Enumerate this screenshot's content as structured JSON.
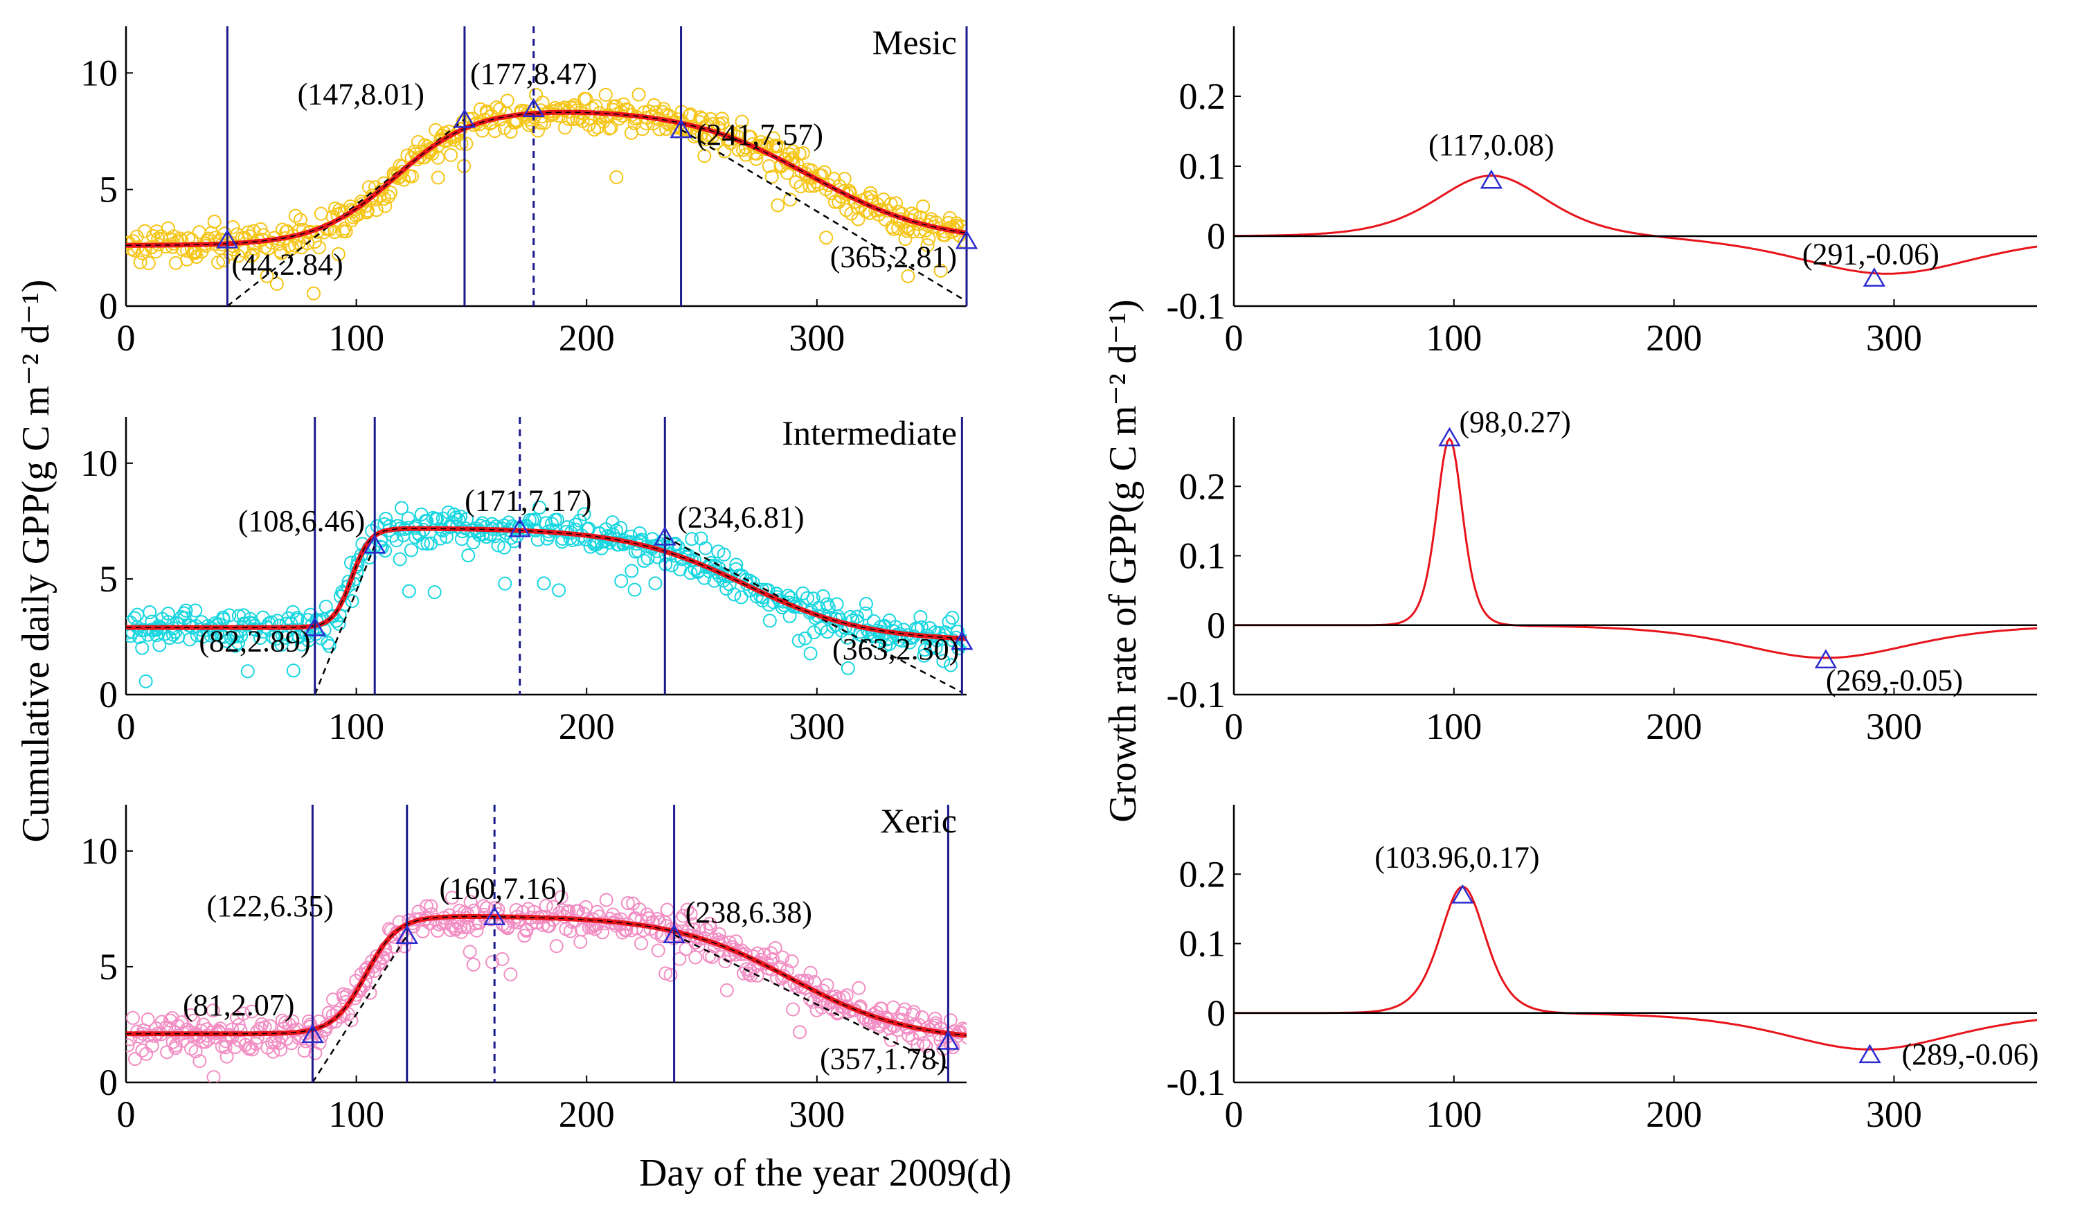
{
  "figure": {
    "xlabel": "Day of the year 2009(d)",
    "left_ylabel": "Cumulative daily GPP(g C m⁻² d⁻¹)",
    "right_ylabel": "Growth rate of GPP(g C m⁻² d⁻¹)"
  },
  "colors": {
    "fit": "#e8141c",
    "mesic": "#f5c518",
    "intermediate": "#19d6e0",
    "xeric": "#f28ec4",
    "line": "#1a1a8c",
    "marker": "#2b2bd0"
  },
  "chart_data": [
    {
      "type": "scatter",
      "title": "Mesic",
      "xlim": [
        0,
        365
      ],
      "ylim": [
        0,
        12
      ],
      "xticks": [
        "0",
        "100",
        "200",
        "300"
      ],
      "yticks": [
        "0",
        "5",
        "10"
      ],
      "model": {
        "base": 2.6,
        "peak": 8.5,
        "rise_mid": 117,
        "rise_width": 17,
        "fall_mid": 297,
        "fall_width": 27,
        "fall_floor": 2.7
      },
      "points": [
        [
          44,
          2.84
        ],
        [
          147,
          8.01
        ],
        [
          177,
          8.47
        ],
        [
          241,
          7.57
        ],
        [
          365,
          2.81
        ]
      ],
      "labels": [
        "(44,2.84)",
        "(147,8.01)",
        "(177,8.47)",
        "(241,7.57)",
        "(365,2.81)"
      ],
      "solid_lines": [
        44,
        147,
        241,
        365
      ],
      "dashed_line": 177,
      "tangents": [
        [
          [
            44,
            0
          ],
          [
            147,
            8.01
          ]
        ],
        [
          [
            241,
            7.57
          ],
          [
            365,
            0.2
          ]
        ]
      ]
    },
    {
      "type": "scatter",
      "title": "Intermediate",
      "xlim": [
        0,
        365
      ],
      "ylim": [
        0,
        12
      ],
      "xticks": [
        "0",
        "100",
        "200",
        "300"
      ],
      "yticks": [
        "0",
        "5",
        "10"
      ],
      "model": {
        "base": 2.9,
        "peak": 7.2,
        "rise_mid": 98,
        "rise_width": 4,
        "fall_mid": 269,
        "fall_width": 26,
        "fall_floor": 2.3
      },
      "points": [
        [
          82,
          2.89
        ],
        [
          108,
          6.46
        ],
        [
          171,
          7.17
        ],
        [
          234,
          6.81
        ],
        [
          363,
          2.3
        ]
      ],
      "labels": [
        "(82,2.89)",
        "(108,6.46)",
        "(171,7.17)",
        "(234,6.81)",
        "(363,2.30)"
      ],
      "solid_lines": [
        82,
        108,
        234,
        363
      ],
      "dashed_line": 171,
      "tangents": [
        [
          [
            82,
            0
          ],
          [
            108,
            6.46
          ]
        ],
        [
          [
            234,
            6.81
          ],
          [
            363,
            0.1
          ]
        ]
      ]
    },
    {
      "type": "scatter",
      "title": "Xeric",
      "xlim": [
        0,
        365
      ],
      "ylim": [
        0,
        12
      ],
      "xticks": [
        "0",
        "100",
        "200",
        "300"
      ],
      "yticks": [
        "0",
        "5",
        "10"
      ],
      "model": {
        "base": 2.1,
        "peak": 7.2,
        "rise_mid": 104,
        "rise_width": 7,
        "fall_mid": 289,
        "fall_width": 26,
        "fall_floor": 1.75
      },
      "points": [
        [
          81,
          2.07
        ],
        [
          122,
          6.35
        ],
        [
          160,
          7.16
        ],
        [
          238,
          6.38
        ],
        [
          357,
          1.78
        ]
      ],
      "labels": [
        "(81,2.07)",
        "(122,6.35)",
        "(160,7.16)",
        "(238,6.38)",
        "(357,1.78)"
      ],
      "solid_lines": [
        81,
        122,
        238,
        357
      ],
      "dashed_line": 160,
      "tangents": [
        [
          [
            81,
            0
          ],
          [
            122,
            6.35
          ]
        ],
        [
          [
            238,
            6.38
          ],
          [
            357,
            0.6
          ]
        ]
      ]
    },
    {
      "type": "line",
      "xlim": [
        0,
        365
      ],
      "ylim": [
        -0.1,
        0.3
      ],
      "xticks": [
        "0",
        "100",
        "200",
        "300"
      ],
      "yticks": [
        "0.2",
        "0.1",
        "0",
        "-0.1"
      ],
      "peaks": [
        [
          117,
          0.08
        ],
        [
          291,
          -0.06
        ]
      ],
      "labels": [
        "(117,0.08)",
        "(291,-0.06)"
      ]
    },
    {
      "type": "line",
      "xlim": [
        0,
        365
      ],
      "ylim": [
        -0.1,
        0.3
      ],
      "xticks": [
        "0",
        "100",
        "200",
        "300"
      ],
      "yticks": [
        "0.2",
        "0.1",
        "0",
        "-0.1"
      ],
      "peaks": [
        [
          98,
          0.27
        ],
        [
          269,
          -0.05
        ]
      ],
      "labels": [
        "(98,0.27)",
        "(269,-0.05)"
      ]
    },
    {
      "type": "line",
      "xlim": [
        0,
        365
      ],
      "ylim": [
        -0.1,
        0.3
      ],
      "xticks": [
        "0",
        "100",
        "200",
        "300"
      ],
      "yticks": [
        "0.2",
        "0.1",
        "0",
        "-0.1"
      ],
      "peaks": [
        [
          103.96,
          0.17
        ],
        [
          289,
          -0.06
        ]
      ],
      "labels": [
        "(103.96,0.17)",
        "(289,-0.06)"
      ]
    }
  ]
}
